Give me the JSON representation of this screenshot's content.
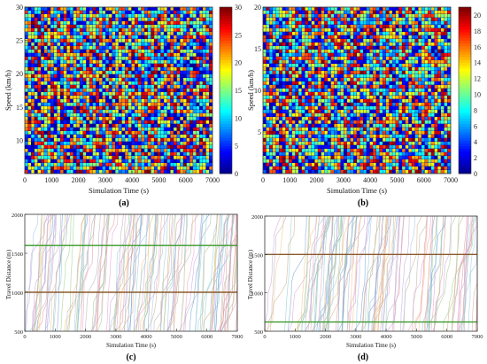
{
  "colors": {
    "jet": [
      "#00008f",
      "#0000ff",
      "#0080ff",
      "#00ffff",
      "#80ff80",
      "#ffff00",
      "#ff8000",
      "#ff0000",
      "#800000"
    ],
    "panel_bg": "#ffffff",
    "line_green": "#3a9a2a",
    "line_brown": "#8b5a2b"
  },
  "panel_labels": [
    "(a)",
    "(b)",
    "(c)",
    "(d)"
  ],
  "chart_data": [
    {
      "type": "heatmap",
      "panel": "(a)",
      "xlabel": "Simulation Time (s)",
      "ylabel": "Speed (km/h)",
      "xlim": [
        0,
        7000
      ],
      "ylim": [
        5,
        30
      ],
      "xticks": [
        0,
        1000,
        2000,
        3000,
        4000,
        5000,
        6000,
        7000
      ],
      "yticks": [
        10,
        15,
        20,
        25,
        30
      ],
      "colorbar": {
        "min": 0,
        "max": 30,
        "ticks": [
          0,
          5,
          10,
          15,
          20,
          25,
          30
        ]
      },
      "grid": {
        "cols": 58,
        "rows": 47,
        "seed": 17
      }
    },
    {
      "type": "heatmap",
      "panel": "(b)",
      "xlabel": "Simulation Time (s)",
      "ylabel": "Speed (km/h)",
      "xlim": [
        0,
        7000
      ],
      "ylim": [
        0,
        20
      ],
      "xticks": [
        0,
        1000,
        2000,
        3000,
        4000,
        5000,
        6000,
        7000
      ],
      "yticks": [
        5,
        10,
        15,
        20
      ],
      "colorbar": {
        "min": 0,
        "max": 21,
        "ticks": [
          0,
          2,
          4,
          6,
          8,
          10,
          12,
          14,
          16,
          18,
          20
        ]
      },
      "grid": {
        "cols": 58,
        "rows": 47,
        "seed": 91
      }
    },
    {
      "type": "line",
      "panel": "(c)",
      "xlabel": "Simulation Time (s)",
      "ylabel": "Travel Distance (m)",
      "xlim": [
        0,
        7000
      ],
      "ylim": [
        500,
        2000
      ],
      "xticks": [
        0,
        1000,
        2000,
        3000,
        4000,
        5000,
        6000,
        7000
      ],
      "yticks": [
        500,
        1000,
        1500,
        2000
      ],
      "hlines": [
        {
          "y": 1000,
          "color": "#8b5a2b"
        },
        {
          "y": 1600,
          "color": "#3a9a2a"
        }
      ],
      "trajectories": {
        "count": 120,
        "seed": 33
      }
    },
    {
      "type": "line",
      "panel": "(d)",
      "xlabel": "Simulation Time (s)",
      "ylabel": "Travel Distance (m)",
      "xlim": [
        0,
        7000
      ],
      "ylim": [
        500,
        2000
      ],
      "xticks": [
        0,
        1000,
        2000,
        3000,
        4000,
        5000,
        6000,
        7000
      ],
      "yticks": [
        500,
        1000,
        1500,
        2000
      ],
      "hlines": [
        {
          "y": 620,
          "color": "#3a9a2a"
        },
        {
          "y": 1500,
          "color": "#8b5a2b"
        }
      ],
      "trajectories": {
        "count": 110,
        "seed": 57
      }
    }
  ]
}
